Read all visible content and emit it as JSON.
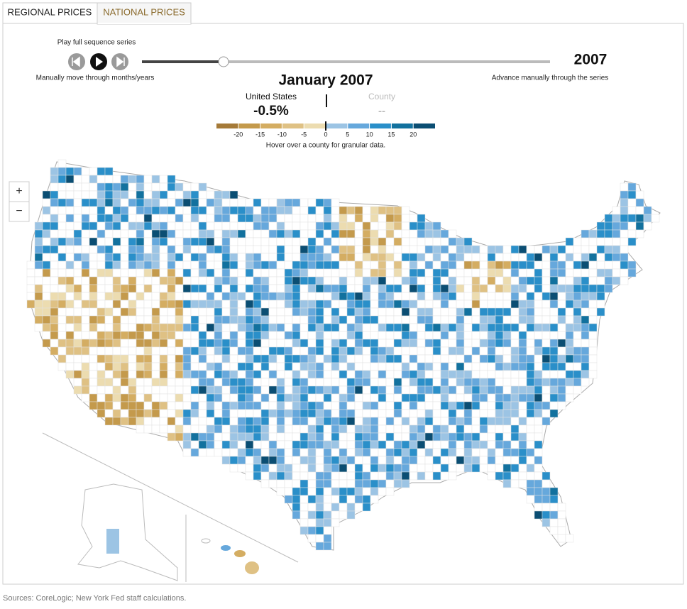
{
  "tabs": [
    "REGIONAL PRICES",
    "NATIONAL PRICES"
  ],
  "controls": {
    "play_label": "Play full sequence series",
    "manual_label": "Manually move through months/years",
    "advance_label": "Advance manually through the series",
    "year": "2007"
  },
  "month_title": "January 2007",
  "summary": {
    "us_label": "United States",
    "us_value": "-0.5%",
    "county_label": "County",
    "county_value": "--"
  },
  "legend": {
    "lim": [
      -25,
      25
    ],
    "ticks": [
      -20,
      -15,
      -10,
      -5,
      0,
      5,
      10,
      15,
      20
    ],
    "colors": [
      "#a57a38",
      "#c49a4c",
      "#d4ad62",
      "#dfc184",
      "#ecdcb0",
      "#9cc4e4",
      "#66a8dc",
      "#2a8fc9",
      "#12719e",
      "#0b4e73"
    ],
    "hint": "Hover over a county for granular data."
  },
  "zoom": [
    "+",
    "−"
  ],
  "source": "Sources: CoreLogic; New York Fed staff calculations."
}
